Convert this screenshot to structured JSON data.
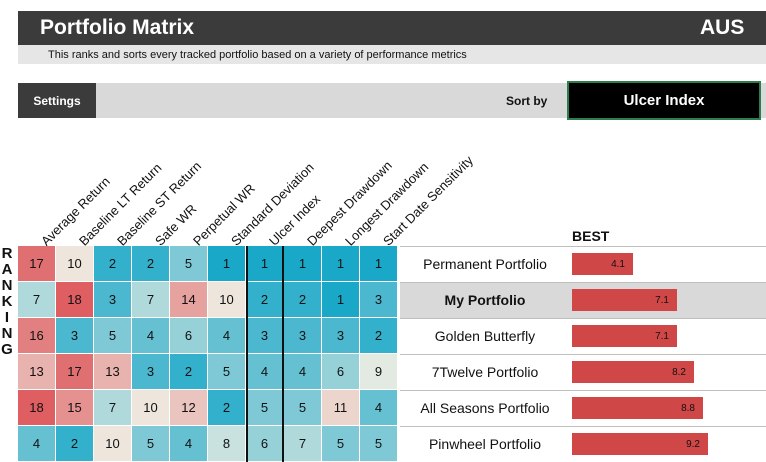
{
  "title": "Portfolio Matrix",
  "country": "AUS",
  "subtitle": "This ranks and sorts every tracked portfolio based on a variety of performance metrics",
  "settings_label": "Settings",
  "sort_by_label": "Sort by",
  "sort_value": "Ulcer Index",
  "ranking_letters": [
    "R",
    "A",
    "N",
    "K",
    "I",
    "N",
    "G"
  ],
  "best_label": "BEST",
  "highlight_column": "Ulcer Index",
  "columns": [
    "Average Return",
    "Baseline LT Return",
    "Baseline ST Return",
    "Safe WR",
    "Perpetual WR",
    "Standard Deviation",
    "Ulcer Index",
    "Deepest Drawdown",
    "Longest Drawdown",
    "Start Date Sensitivity"
  ],
  "rows": [
    {
      "name": "Permanent Portfolio",
      "ranks": [
        "17",
        "10",
        "2",
        "2",
        "5",
        "1",
        "1",
        "1",
        "1",
        "1"
      ],
      "score": "4.1",
      "score_value": 4.1,
      "highlighted": false
    },
    {
      "name": "My Portfolio",
      "ranks": [
        "7",
        "18",
        "3",
        "7",
        "14",
        "10",
        "2",
        "2",
        "1",
        "3"
      ],
      "score": "7.1",
      "score_value": 7.1,
      "highlighted": true
    },
    {
      "name": "Golden Butterfly",
      "ranks": [
        "16",
        "3",
        "5",
        "4",
        "6",
        "4",
        "3",
        "3",
        "3",
        "2"
      ],
      "score": "7.1",
      "score_value": 7.1,
      "highlighted": false
    },
    {
      "name": "7Twelve Portfolio",
      "ranks": [
        "13",
        "17",
        "13",
        "3",
        "2",
        "5",
        "4",
        "4",
        "6",
        "9"
      ],
      "score": "8.2",
      "score_value": 8.2,
      "highlighted": false
    },
    {
      "name": "All Seasons Portfolio",
      "ranks": [
        "18",
        "15",
        "7",
        "10",
        "12",
        "2",
        "5",
        "5",
        "11",
        "4"
      ],
      "score": "8.8",
      "score_value": 8.8,
      "highlighted": false
    },
    {
      "name": "Pinwheel Portfolio",
      "ranks": [
        "4",
        "2",
        "10",
        "5",
        "4",
        "8",
        "6",
        "7",
        "5",
        "5"
      ],
      "score": "9.2",
      "score_value": 9.2,
      "highlighted": false
    }
  ],
  "colors": {
    "header_bar": "#3b3b3b",
    "controls_bar": "#d9d9d9",
    "sort_select": "#000000",
    "score_bar": "#cf4747",
    "row_highlight": "#d9d9d9",
    "scale_best": "#1aa8c8",
    "scale_mid": "#efeee4",
    "scale_worst": "#de5e62"
  }
}
